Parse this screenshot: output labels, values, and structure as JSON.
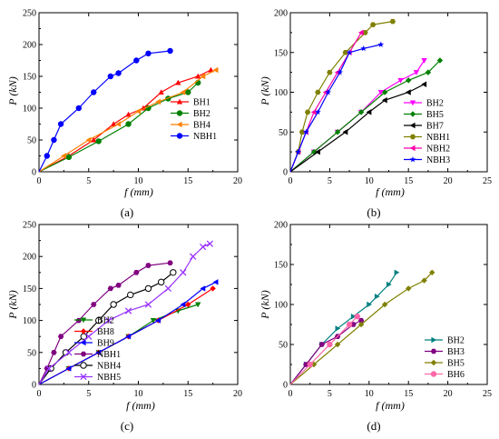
{
  "chart_data": [
    {
      "type": "line",
      "panel_label": "(a)",
      "xlabel": "f (mm)",
      "ylabel": "P (kN)",
      "xlim": [
        0,
        20
      ],
      "ylim": [
        0,
        250
      ],
      "xticks": [
        "0",
        "5",
        "10",
        "15",
        "20"
      ],
      "yticks": [
        "0",
        "50",
        "100",
        "150",
        "200",
        "250"
      ],
      "legend_position": "center-right",
      "series": [
        {
          "name": "BH1",
          "color": "#ff0000",
          "marker": "triangle-up",
          "x": [
            0,
            3,
            5.5,
            7.5,
            9,
            10.5,
            12.3,
            14,
            16,
            17.3
          ],
          "y": [
            0,
            25,
            50,
            75,
            90,
            100,
            125,
            140,
            150,
            160
          ]
        },
        {
          "name": "BH2",
          "color": "#008000",
          "marker": "circle",
          "x": [
            0,
            3,
            6,
            9,
            11,
            13,
            15,
            16
          ],
          "y": [
            0,
            23,
            48,
            75,
            100,
            115,
            125,
            140
          ]
        },
        {
          "name": "BH4",
          "color": "#ff8000",
          "marker": "triangle-left",
          "x": [
            0,
            2.5,
            5,
            8,
            10,
            12,
            14.5,
            16.5,
            17.8
          ],
          "y": [
            0,
            25,
            50,
            75,
            95,
            110,
            125,
            150,
            160
          ]
        },
        {
          "name": "NBH1",
          "color": "#0000ff",
          "marker": "circle",
          "x": [
            0,
            0.8,
            1.5,
            2.2,
            4,
            5.5,
            7.2,
            8,
            9.8,
            11,
            13.2
          ],
          "y": [
            0,
            25,
            50,
            75,
            100,
            125,
            150,
            155,
            175,
            186,
            190
          ]
        }
      ]
    },
    {
      "type": "line",
      "panel_label": "(b)",
      "xlabel": "f (mm)",
      "ylabel": "P (kN)",
      "xlim": [
        0,
        25
      ],
      "ylim": [
        0,
        200
      ],
      "xticks": [
        "0",
        "5",
        "10",
        "15",
        "20",
        "25"
      ],
      "yticks": [
        "0",
        "50",
        "100",
        "150",
        "200"
      ],
      "legend_position": "bottom-right",
      "series": [
        {
          "name": "BH2",
          "color": "#ff00ff",
          "marker": "triangle-down",
          "x": [
            0,
            3,
            6,
            9,
            11.5,
            14,
            16,
            17
          ],
          "y": [
            0,
            25,
            50,
            75,
            100,
            115,
            125,
            140
          ]
        },
        {
          "name": "BH5",
          "color": "#008000",
          "marker": "diamond",
          "x": [
            0,
            3,
            6,
            9,
            12,
            15,
            17.5,
            19
          ],
          "y": [
            0,
            25,
            50,
            75,
            100,
            115,
            125,
            140
          ]
        },
        {
          "name": "BH7",
          "color": "#000000",
          "marker": "triangle-left",
          "x": [
            0,
            3.5,
            7,
            10,
            12,
            15,
            17
          ],
          "y": [
            0,
            25,
            50,
            75,
            90,
            100,
            110
          ]
        },
        {
          "name": "NBH1",
          "color": "#808000",
          "marker": "hexagon",
          "x": [
            0,
            1,
            1.5,
            2.2,
            3.5,
            5,
            7,
            9.5,
            10.5,
            13
          ],
          "y": [
            0,
            25,
            50,
            75,
            100,
            125,
            150,
            175,
            185,
            189
          ]
        },
        {
          "name": "NBH2",
          "color": "#ff00aa",
          "marker": "triangle-left",
          "x": [
            0,
            1,
            2,
            3,
            4.5,
            6,
            7.5,
            9
          ],
          "y": [
            0,
            25,
            50,
            75,
            100,
            125,
            150,
            175
          ]
        },
        {
          "name": "NBH3",
          "color": "#0000ff",
          "marker": "star",
          "x": [
            0,
            1,
            2,
            3.5,
            4.8,
            6.3,
            7.5,
            9.3,
            11.5
          ],
          "y": [
            0,
            25,
            50,
            75,
            100,
            125,
            150,
            155,
            160
          ]
        }
      ]
    },
    {
      "type": "line",
      "panel_label": "(c)",
      "xlabel": "f (mm)",
      "ylabel": "P (kN)",
      "xlim": [
        0,
        20
      ],
      "ylim": [
        0,
        250
      ],
      "xticks": [
        "0",
        "5",
        "10",
        "15",
        "20"
      ],
      "yticks": [
        "0",
        "50",
        "100",
        "150",
        "200",
        "250"
      ],
      "legend_position": "bottom-right",
      "series": [
        {
          "name": "BH2",
          "color": "#008000",
          "marker": "triangle-down",
          "x": [
            0,
            3,
            6,
            9,
            11.5,
            14,
            16
          ],
          "y": [
            0,
            25,
            50,
            75,
            100,
            115,
            125
          ]
        },
        {
          "name": "BH8",
          "color": "#ff0000",
          "marker": "diamond",
          "x": [
            0,
            3,
            6,
            9,
            12,
            15,
            17.5
          ],
          "y": [
            0,
            25,
            50,
            75,
            100,
            125,
            150
          ]
        },
        {
          "name": "BH9",
          "color": "#0000ff",
          "marker": "triangle-left",
          "x": [
            0,
            3,
            6,
            9,
            12,
            14.5,
            16.5,
            17.8
          ],
          "y": [
            0,
            25,
            50,
            75,
            100,
            125,
            150,
            160
          ]
        },
        {
          "name": "NBH1",
          "color": "#800080",
          "marker": "hexagon",
          "x": [
            0,
            0.8,
            1.5,
            2.2,
            4,
            5.5,
            7.2,
            8,
            9.8,
            11,
            13.2
          ],
          "y": [
            0,
            25,
            50,
            75,
            100,
            125,
            150,
            155,
            175,
            186,
            190
          ]
        },
        {
          "name": "NBH4",
          "color": "#000000",
          "marker": "circle-open",
          "x": [
            0,
            1.2,
            2.7,
            4.5,
            6,
            7.5,
            9.2,
            11,
            12.3,
            13.5
          ],
          "y": [
            0,
            25,
            50,
            75,
            100,
            125,
            140,
            150,
            160,
            175
          ]
        },
        {
          "name": "NBH5",
          "color": "#9933ff",
          "marker": "x",
          "x": [
            0,
            1,
            3,
            5,
            7,
            9,
            11,
            13,
            14.5,
            15.5,
            16.5,
            17.2
          ],
          "y": [
            0,
            25,
            50,
            75,
            100,
            115,
            125,
            150,
            175,
            200,
            215,
            220
          ]
        }
      ]
    },
    {
      "type": "line",
      "panel_label": "(d)",
      "xlabel": "f (mm)",
      "ylabel": "P (kN)",
      "xlim": [
        0,
        25
      ],
      "ylim": [
        0,
        200
      ],
      "xticks": [
        "0",
        "5",
        "10",
        "15",
        "20",
        "25"
      ],
      "yticks": [
        "0",
        "50",
        "100",
        "150",
        "200"
      ],
      "legend_position": "bottom-right",
      "series": [
        {
          "name": "BH2",
          "color": "#008080",
          "marker": "triangle-right",
          "x": [
            0,
            2,
            4,
            6,
            8,
            10,
            11,
            12.5,
            13.5
          ],
          "y": [
            0,
            25,
            50,
            70,
            85,
            100,
            110,
            125,
            140
          ]
        },
        {
          "name": "BH3",
          "color": "#800080",
          "marker": "hexagon",
          "x": [
            0,
            2,
            4,
            6,
            8,
            9
          ],
          "y": [
            0,
            25,
            50,
            60,
            75,
            80
          ]
        },
        {
          "name": "BH5",
          "color": "#808000",
          "marker": "diamond",
          "x": [
            0,
            3,
            6,
            9,
            12,
            15,
            17,
            18
          ],
          "y": [
            0,
            25,
            50,
            75,
            100,
            120,
            130,
            140
          ]
        },
        {
          "name": "BH6",
          "color": "#ff66aa",
          "marker": "circle",
          "x": [
            0,
            2.5,
            5,
            7.5,
            8.5
          ],
          "y": [
            0,
            25,
            50,
            75,
            85
          ]
        }
      ]
    }
  ]
}
